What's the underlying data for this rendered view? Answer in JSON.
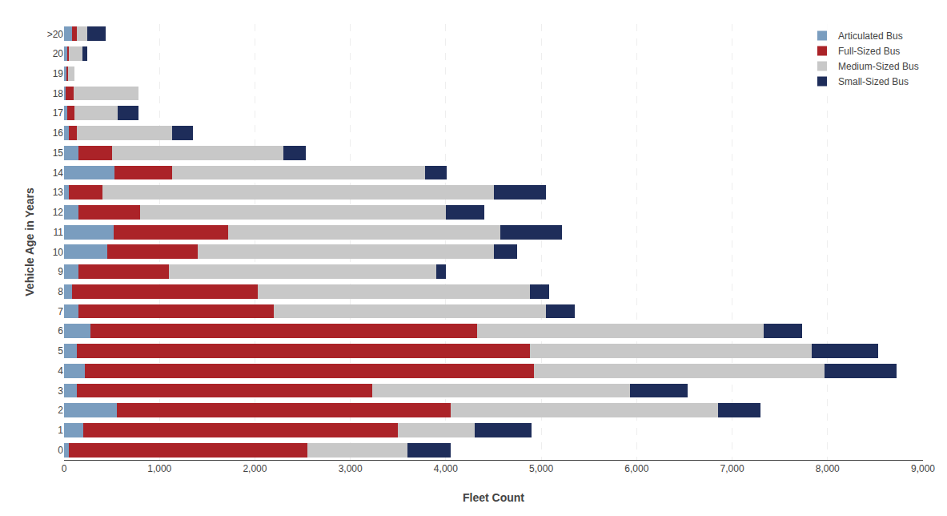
{
  "chart_data": {
    "type": "bar",
    "orientation": "horizontal",
    "stacked": true,
    "xlabel": "Fleet Count",
    "ylabel": "Vehicle Age in Years",
    "categories": [
      "0",
      "1",
      "2",
      "3",
      "4",
      "5",
      "6",
      "7",
      "8",
      "9",
      "10",
      "11",
      "12",
      "13",
      "14",
      "15",
      "16",
      "17",
      "18",
      "19",
      "20",
      ">20"
    ],
    "series": [
      {
        "name": "Articulated Bus",
        "color": "#7a9dbf",
        "values": [
          50,
          200,
          550,
          130,
          220,
          130,
          280,
          150,
          80,
          150,
          450,
          520,
          150,
          50,
          530,
          150,
          50,
          30,
          20,
          25,
          30,
          80
        ]
      },
      {
        "name": "Full-Sized Bus",
        "color": "#ab2328",
        "values": [
          2500,
          3300,
          3500,
          3100,
          4700,
          4750,
          4050,
          2050,
          1950,
          950,
          950,
          1200,
          650,
          350,
          600,
          350,
          80,
          80,
          80,
          20,
          20,
          50
        ]
      },
      {
        "name": "Medium-Sized Bus",
        "color": "#c8c8c8",
        "values": [
          1050,
          800,
          2800,
          2700,
          3050,
          2950,
          3000,
          2850,
          2850,
          2800,
          3100,
          2850,
          3200,
          4100,
          2650,
          1800,
          1000,
          450,
          680,
          60,
          140,
          110
        ]
      },
      {
        "name": "Small-Sized Bus",
        "color": "#1e2d5a",
        "values": [
          450,
          600,
          450,
          600,
          750,
          700,
          400,
          300,
          200,
          100,
          250,
          650,
          400,
          550,
          230,
          230,
          220,
          220,
          0,
          0,
          50,
          200
        ]
      }
    ],
    "xlim": [
      0,
      9000
    ],
    "xticks": [
      0,
      {
        "value": 1000,
        "label": "1,000"
      },
      {
        "value": 2000,
        "label": "2,000"
      },
      {
        "value": 3000,
        "label": "3,000"
      },
      {
        "value": 4000,
        "label": "4,000"
      },
      {
        "value": 5000,
        "label": "5,000"
      },
      {
        "value": 6000,
        "label": "6,000"
      },
      {
        "value": 7000,
        "label": "7,000"
      },
      {
        "value": 8000,
        "label": "8,000"
      },
      {
        "value": 9000,
        "label": "9,000"
      }
    ],
    "grid": true,
    "legend": "upper right"
  }
}
